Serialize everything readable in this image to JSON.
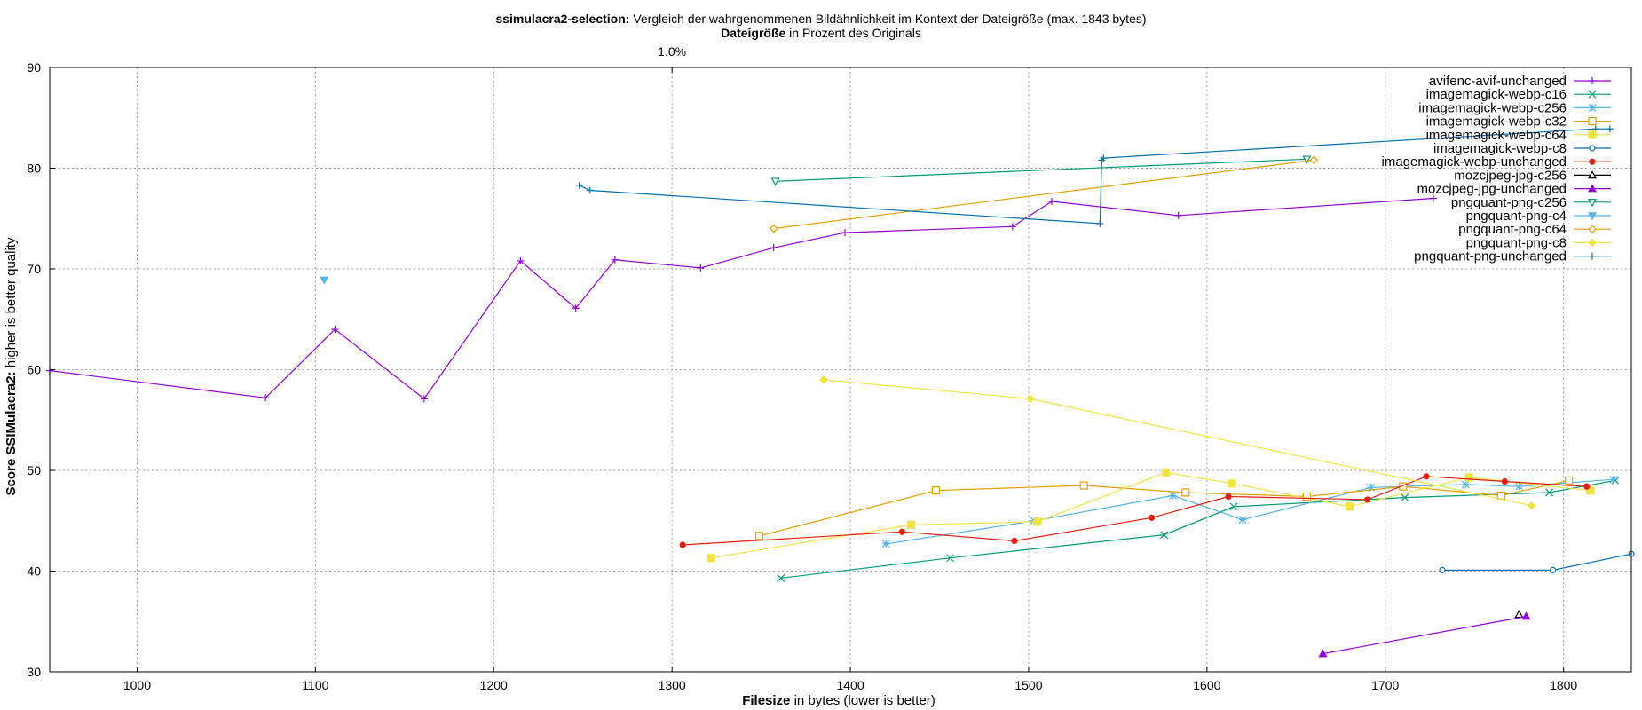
{
  "header": {
    "title_bold": "ssimulacra2-selection:",
    "title_rest": " Vergleich der wahrgenommenen Bildähnlichkeit im Kontext der Dateigröße (max. 1843 bytes)",
    "subtitle_bold": "Dateigröße",
    "subtitle_rest": " in Prozent des Originals",
    "top_tick": "1.0%"
  },
  "axes": {
    "xlabel_bold": "Filesize",
    "xlabel_rest": " in bytes (lower is better)",
    "ylabel_bold": "Score SSIMulacra2:",
    "ylabel_rest": " higher is better quality"
  },
  "chart_data": {
    "type": "line",
    "title": "ssimulacra2-selection: Vergleich der wahrgenommenen Bildähnlichkeit im Kontext der Dateigröße (max. 1843 bytes)",
    "x2label": "Dateigröße in Prozent des Originals",
    "x2ticks": [
      {
        "x": 1300,
        "label": "1.0%"
      }
    ],
    "xlabel": "Filesize in bytes (lower is better)",
    "ylabel": "Score SSIMulacra2: higher is better quality",
    "xlim": [
      951,
      1838
    ],
    "ylim": [
      30,
      90
    ],
    "xticks": [
      1000,
      1100,
      1200,
      1300,
      1400,
      1500,
      1600,
      1700,
      1800
    ],
    "yticks": [
      30,
      40,
      50,
      60,
      70,
      80,
      90
    ],
    "grid": true,
    "legend_position": "top-right",
    "series": [
      {
        "name": "avifenc-avif-unchanged",
        "color": "#9400d3",
        "marker": "plus",
        "points": [
          [
            951,
            59.9
          ],
          [
            1072,
            57.2
          ],
          [
            1111,
            64
          ],
          [
            1161,
            57.1
          ],
          [
            1215,
            70.8
          ],
          [
            1246,
            66.1
          ],
          [
            1268,
            70.9
          ],
          [
            1316,
            70.1
          ],
          [
            1357,
            72.1
          ],
          [
            1397,
            73.6
          ],
          [
            1491,
            74.2
          ],
          [
            1513,
            76.7
          ],
          [
            1584,
            75.3
          ],
          [
            1727,
            77
          ]
        ]
      },
      {
        "name": "imagemagick-webp-c16",
        "color": "#009e73",
        "marker": "x",
        "points": [
          [
            1361,
            39.3
          ],
          [
            1456,
            41.3
          ],
          [
            1576,
            43.6
          ],
          [
            1615,
            46.4
          ],
          [
            1711,
            47.3
          ],
          [
            1792,
            47.8
          ],
          [
            1829,
            49
          ]
        ]
      },
      {
        "name": "imagemagick-webp-c256",
        "color": "#56b4e9",
        "marker": "star",
        "points": [
          [
            1420,
            42.7
          ],
          [
            1503,
            45
          ],
          [
            1581,
            47.5
          ],
          [
            1620,
            45.1
          ],
          [
            1692,
            48.3
          ],
          [
            1745,
            48.6
          ],
          [
            1775,
            48.4
          ],
          [
            1828,
            49.1
          ]
        ]
      },
      {
        "name": "imagemagick-webp-c32",
        "color": "#e69f00",
        "marker": "square",
        "points": [
          [
            1349,
            43.5
          ],
          [
            1448,
            48
          ],
          [
            1531,
            48.5
          ],
          [
            1588,
            47.8
          ],
          [
            1656,
            47.4
          ],
          [
            1710,
            48.4
          ],
          [
            1765,
            47.5
          ],
          [
            1803,
            49
          ]
        ]
      },
      {
        "name": "imagemagick-webp-c64",
        "color": "#f0e442",
        "marker": "filledsquare",
        "points": [
          [
            1322,
            41.3
          ],
          [
            1434,
            44.6
          ],
          [
            1505,
            44.9
          ],
          [
            1577,
            49.8
          ],
          [
            1614,
            48.7
          ],
          [
            1680,
            46.4
          ],
          [
            1747,
            49.3
          ],
          [
            1815,
            48
          ]
        ]
      },
      {
        "name": "imagemagick-webp-c8",
        "color": "#0072b2",
        "marker": "circle",
        "points": [
          [
            1732,
            40.1
          ],
          [
            1794,
            40.1
          ],
          [
            1838,
            41.7
          ]
        ]
      },
      {
        "name": "imagemagick-webp-unchanged",
        "color": "#e51e10",
        "marker": "filledcircle",
        "points": [
          [
            1306,
            42.6
          ],
          [
            1429,
            43.9
          ],
          [
            1492,
            43
          ],
          [
            1569,
            45.3
          ],
          [
            1612,
            47.4
          ],
          [
            1690,
            47.1
          ],
          [
            1723,
            49.4
          ],
          [
            1767,
            48.9
          ],
          [
            1813,
            48.4
          ]
        ]
      },
      {
        "name": "mozcjpeg-jpg-c256",
        "color": "#000000",
        "marker": "triangle",
        "points": [
          [
            1775,
            35.7
          ]
        ]
      },
      {
        "name": "mozcjpeg-jpg-unchanged",
        "color": "#9400d3",
        "marker": "filledtriangle",
        "points": [
          [
            1665,
            31.8
          ],
          [
            1779,
            35.5
          ]
        ]
      },
      {
        "name": "pngquant-png-c256",
        "color": "#009e73",
        "marker": "invtriangle",
        "points": [
          [
            1358,
            78.7
          ],
          [
            1656,
            80.9
          ]
        ]
      },
      {
        "name": "pngquant-png-c4",
        "color": "#56b4e9",
        "marker": "filledinvtriangle",
        "points": [
          [
            1105,
            68.9
          ]
        ]
      },
      {
        "name": "pngquant-png-c64",
        "color": "#e69f00",
        "marker": "diamond",
        "points": [
          [
            1357,
            74
          ],
          [
            1660,
            80.8
          ]
        ]
      },
      {
        "name": "pngquant-png-c8",
        "color": "#f0e442",
        "marker": "filleddiamond",
        "points": [
          [
            1385,
            59
          ],
          [
            1501,
            57.1
          ],
          [
            1782,
            46.5
          ]
        ]
      },
      {
        "name": "pngquant-png-unchanged",
        "color": "#0072b2",
        "marker": "plus",
        "points": [
          [
            1248,
            78.3
          ],
          [
            1254,
            77.8
          ],
          [
            1540,
            74.5
          ],
          [
            1541,
            80.8
          ],
          [
            1542,
            81
          ],
          [
            1818,
            83.9
          ],
          [
            1826,
            83.9
          ]
        ]
      }
    ]
  }
}
